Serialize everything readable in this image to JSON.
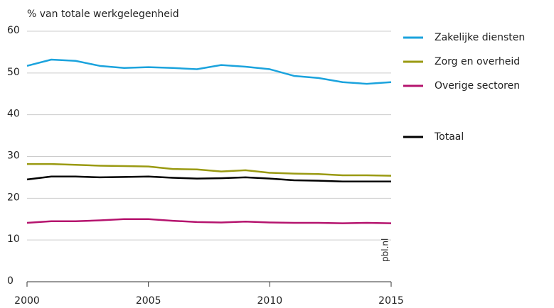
{
  "chart_data": {
    "type": "line",
    "y_label": "% van totale werkgelegenheid",
    "watermark": "pbl.nl",
    "x": [
      2000,
      2001,
      2002,
      2003,
      2004,
      2005,
      2006,
      2007,
      2008,
      2009,
      2010,
      2011,
      2012,
      2013,
      2014,
      2015
    ],
    "xlim": [
      2000,
      2015
    ],
    "xticks": [
      2000,
      2005,
      2010,
      2015
    ],
    "ylim": [
      0,
      60
    ],
    "yticks": [
      0,
      10,
      20,
      30,
      40,
      50,
      60
    ],
    "grid": true,
    "legend": "right",
    "series": [
      {
        "name": "Zakelijke diensten",
        "color": "#1ba3dd",
        "values": [
          51.7,
          53.2,
          52.9,
          51.7,
          51.2,
          51.4,
          51.2,
          50.9,
          51.9,
          51.5,
          50.9,
          49.3,
          48.8,
          47.8,
          47.4,
          47.8
        ]
      },
      {
        "name": "Zorg en overheid",
        "color": "#9a9a12",
        "values": [
          28.2,
          28.2,
          28.0,
          27.8,
          27.7,
          27.6,
          27.0,
          26.9,
          26.4,
          26.7,
          26.1,
          25.9,
          25.8,
          25.5,
          25.5,
          25.4
        ]
      },
      {
        "name": "Overige sectoren",
        "color": "#b5146e",
        "values": [
          14.1,
          14.5,
          14.5,
          14.7,
          15.0,
          15.0,
          14.6,
          14.3,
          14.2,
          14.4,
          14.2,
          14.1,
          14.1,
          14.0,
          14.1,
          14.0
        ]
      },
      {
        "name": "Totaal",
        "color": "#000000",
        "values": [
          24.5,
          25.2,
          25.2,
          25.0,
          25.1,
          25.2,
          24.9,
          24.7,
          24.8,
          25.0,
          24.7,
          24.3,
          24.2,
          24.0,
          24.0,
          24.0
        ]
      }
    ]
  }
}
